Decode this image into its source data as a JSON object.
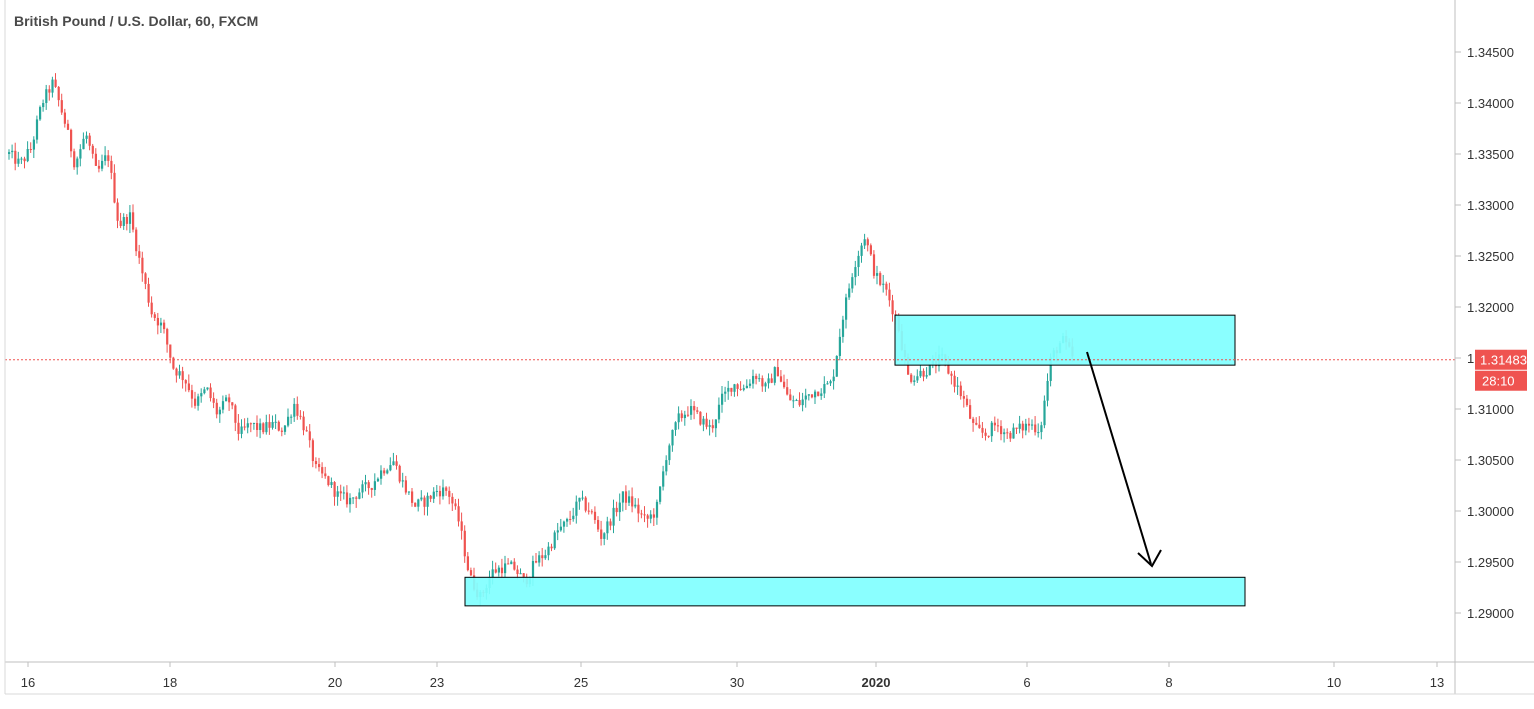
{
  "chart_data": {
    "type": "candlestick",
    "title": "British Pound / U.S. Dollar, 60, FXCM",
    "y_ticks": [
      "1.29000",
      "1.29500",
      "1.30000",
      "1.30500",
      "1.31000",
      "1.31500",
      "1.32000",
      "1.32500",
      "1.33000",
      "1.33500",
      "1.34000",
      "1.34500"
    ],
    "y_range": [
      1.285,
      1.348
    ],
    "x_ticks": [
      {
        "label": "16",
        "bold": false
      },
      {
        "label": "18",
        "bold": false
      },
      {
        "label": "20",
        "bold": false
      },
      {
        "label": "23",
        "bold": false
      },
      {
        "label": "25",
        "bold": false
      },
      {
        "label": "30",
        "bold": false
      },
      {
        "label": "2020",
        "bold": true
      },
      {
        "label": "6",
        "bold": false
      },
      {
        "label": "8",
        "bold": false
      },
      {
        "label": "10",
        "bold": false
      },
      {
        "label": "13",
        "bold": false
      }
    ],
    "current_price": {
      "value": "1.31483",
      "price": 1.31483,
      "countdown": "28:10"
    },
    "colors": {
      "up": "#26a69a",
      "down": "#ef5350",
      "zone_fill": "#80ffff",
      "zone_stroke": "#000000",
      "arrow": "#000000",
      "price_label": "#ef5350"
    },
    "price_path": [
      1.335,
      1.334,
      1.3355,
      1.34,
      1.342,
      1.3385,
      1.334,
      1.337,
      1.333,
      1.335,
      1.328,
      1.329,
      1.324,
      1.3195,
      1.318,
      1.314,
      1.313,
      1.3105,
      1.312,
      1.3095,
      1.311,
      1.3075,
      1.3085,
      1.308,
      1.3085,
      1.308,
      1.3105,
      1.308,
      1.304,
      1.303,
      1.3015,
      1.301,
      1.302,
      1.3025,
      1.304,
      1.305,
      1.3025,
      1.3005,
      1.301,
      1.302,
      1.302,
      1.299,
      1.2935,
      1.2915,
      1.294,
      1.2945,
      1.2945,
      1.293,
      1.295,
      1.296,
      1.298,
      1.299,
      1.301,
      1.3,
      1.2975,
      1.2995,
      1.3015,
      1.3005,
      1.299,
      1.3,
      1.306,
      1.309,
      1.31,
      1.309,
      1.308,
      1.311,
      1.3125,
      1.312,
      1.3135,
      1.312,
      1.314,
      1.311,
      1.3105,
      1.3115,
      1.312,
      1.3125,
      1.319,
      1.324,
      1.327,
      1.323,
      1.3215,
      1.3185,
      1.313,
      1.3135,
      1.314,
      1.315,
      1.313,
      1.311,
      1.308,
      1.3075,
      1.3085,
      1.3075,
      1.308,
      1.3085,
      1.308,
      1.315,
      1.3168,
      1.315
    ],
    "zones": [
      {
        "name": "resistance-zone",
        "from_date": "Jan 2",
        "to_date": "Jan 9",
        "price_top": 1.3192,
        "price_bottom": 1.3143
      },
      {
        "name": "support-zone",
        "from_date": "Dec 23",
        "to_date": "Jan 9",
        "price_top": 1.2935,
        "price_bottom": 1.2907
      }
    ]
  }
}
